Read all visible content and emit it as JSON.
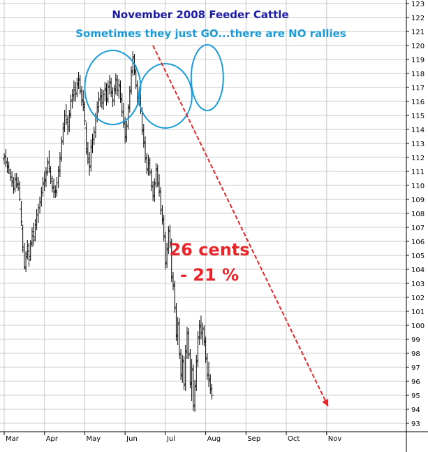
{
  "chart_data": {
    "type": "ohlc",
    "title": "November 2008 Feeder Cattle",
    "subtitle": "Sometimes they just GO...there are NO rallies",
    "annotation_main": "26 cents",
    "annotation_sub": "- 21 %",
    "ylim": [
      93,
      123
    ],
    "yticks": [
      93,
      94,
      95,
      96,
      97,
      98,
      99,
      100,
      101,
      102,
      103,
      104,
      105,
      106,
      107,
      108,
      109,
      110,
      111,
      112,
      113,
      114,
      115,
      116,
      117,
      118,
      119,
      120,
      121,
      122,
      123
    ],
    "xlabels": [
      "Mar",
      "Apr",
      "May",
      "Jun",
      "Jul",
      "Aug",
      "Sep",
      "Oct",
      "Nov"
    ],
    "y_axis_side": "right",
    "grid": true,
    "colors": {
      "title": "#1a1aa6",
      "subtitle": "#1b9bd7",
      "circles": "#1b9bd7",
      "arrow": "#e8262a",
      "annotation": "#e8262a",
      "bars": "#000000",
      "grid": "#c8c8c8"
    },
    "trend_arrow": {
      "from": {
        "x_index": 114,
        "y": 120.0
      },
      "to": {
        "x_index": 182,
        "y": 94.2
      }
    },
    "highlight_circles": [
      {
        "center_x_index": 70,
        "center_y": 117.0
      },
      {
        "center_x_index": 104,
        "center_y": 116.4
      },
      {
        "center_x_index": 131,
        "center_y": 117.7
      }
    ],
    "x_label_index": [
      0,
      26,
      52,
      78,
      104,
      130,
      156,
      182,
      208
    ],
    "series": [
      {
        "values": [
          [
            111.9,
            112.3,
            111.5,
            112.0
          ],
          [
            112.1,
            112.6,
            111.3,
            111.6
          ],
          [
            111.7,
            112.0,
            110.9,
            111.3
          ],
          [
            111.4,
            111.7,
            110.8,
            111.1
          ],
          [
            110.9,
            111.2,
            110.3,
            110.6
          ],
          [
            110.6,
            111.0,
            109.9,
            110.3
          ],
          [
            110.2,
            110.6,
            109.4,
            109.8
          ],
          [
            109.7,
            110.9,
            109.5,
            110.5
          ],
          [
            110.4,
            110.9,
            109.8,
            110.0
          ],
          [
            110.1,
            110.6,
            109.6,
            110.1
          ],
          [
            109.8,
            110.3,
            108.9,
            109.0
          ],
          [
            108.3,
            108.9,
            107.1,
            107.4
          ],
          [
            106.9,
            107.2,
            105.2,
            105.6
          ],
          [
            105.4,
            105.9,
            104.0,
            104.2
          ],
          [
            104.1,
            105.3,
            103.8,
            104.9
          ],
          [
            105.1,
            106.1,
            104.7,
            105.7
          ],
          [
            105.3,
            105.9,
            104.2,
            104.7
          ],
          [
            104.9,
            106.1,
            104.6,
            105.8
          ],
          [
            105.9,
            107.0,
            105.6,
            106.7
          ],
          [
            106.4,
            107.3,
            105.7,
            106.1
          ],
          [
            106.3,
            107.6,
            106.0,
            107.2
          ],
          [
            107.2,
            108.3,
            106.8,
            107.9
          ],
          [
            107.9,
            108.7,
            107.3,
            108.4
          ],
          [
            108.4,
            109.2,
            108.0,
            108.8
          ],
          [
            108.8,
            109.9,
            108.5,
            109.5
          ],
          [
            109.5,
            110.6,
            109.2,
            110.2
          ],
          [
            110.1,
            111.0,
            109.6,
            110.4
          ],
          [
            110.3,
            111.3,
            109.9,
            111.0
          ],
          [
            110.9,
            112.0,
            110.7,
            111.7
          ],
          [
            111.6,
            112.5,
            110.9,
            111.2
          ],
          [
            111.0,
            111.4,
            110.1,
            110.5
          ],
          [
            110.3,
            110.7,
            109.5,
            109.9
          ],
          [
            109.8,
            110.5,
            109.1,
            109.6
          ],
          [
            109.5,
            110.0,
            109.1,
            109.5
          ],
          [
            109.6,
            110.6,
            109.2,
            110.2
          ],
          [
            110.2,
            111.4,
            109.8,
            111.0
          ],
          [
            111.1,
            112.4,
            110.6,
            111.9
          ],
          [
            112.0,
            113.5,
            111.7,
            113.1
          ],
          [
            113.2,
            114.5,
            112.9,
            114.1
          ],
          [
            114.1,
            115.4,
            113.8,
            115.0
          ],
          [
            115.0,
            115.8,
            114.3,
            114.7
          ],
          [
            114.5,
            115.0,
            113.6,
            114.0
          ],
          [
            114.2,
            115.4,
            113.8,
            115.0
          ],
          [
            115.1,
            116.5,
            114.8,
            116.1
          ],
          [
            116.0,
            116.9,
            115.5,
            116.5
          ],
          [
            116.4,
            117.5,
            116.0,
            117.0
          ],
          [
            116.8,
            117.4,
            116.0,
            116.5
          ],
          [
            116.6,
            117.7,
            116.3,
            117.3
          ],
          [
            117.2,
            118.1,
            116.9,
            117.6
          ],
          [
            117.5,
            117.9,
            116.5,
            116.8
          ],
          [
            116.7,
            117.1,
            115.7,
            116.1
          ],
          [
            116.0,
            116.8,
            115.3,
            115.8
          ],
          [
            115.6,
            116.0,
            114.3,
            114.6
          ],
          [
            114.1,
            114.5,
            112.2,
            112.6
          ],
          [
            112.4,
            113.1,
            111.5,
            111.9
          ],
          [
            111.7,
            112.4,
            110.7,
            111.3
          ],
          [
            111.4,
            113.3,
            111.0,
            112.8
          ],
          [
            112.7,
            113.7,
            112.3,
            113.3
          ],
          [
            113.3,
            114.2,
            112.9,
            113.8
          ],
          [
            113.8,
            115.2,
            113.4,
            114.9
          ],
          [
            114.9,
            116.0,
            114.5,
            115.6
          ],
          [
            115.6,
            116.7,
            115.2,
            116.2
          ],
          [
            116.1,
            117.0,
            115.6,
            116.4
          ],
          [
            116.3,
            116.9,
            115.5,
            115.9
          ],
          [
            115.9,
            116.8,
            115.4,
            116.5
          ],
          [
            116.5,
            117.4,
            116.0,
            116.9
          ],
          [
            116.8,
            117.3,
            115.7,
            116.1
          ],
          [
            116.2,
            117.5,
            115.9,
            117.1
          ],
          [
            117.0,
            117.9,
            116.5,
            117.4
          ],
          [
            117.3,
            117.7,
            116.3,
            116.7
          ],
          [
            116.6,
            117.0,
            115.6,
            116.0
          ],
          [
            116.1,
            117.2,
            115.7,
            116.8
          ],
          [
            116.9,
            118.0,
            116.5,
            117.6
          ],
          [
            117.5,
            117.9,
            116.4,
            116.8
          ],
          [
            116.8,
            117.6,
            116.2,
            117.2
          ],
          [
            117.1,
            117.5,
            115.9,
            116.2
          ],
          [
            116.1,
            116.6,
            114.9,
            115.3
          ],
          [
            115.2,
            115.9,
            114.1,
            114.5
          ],
          [
            114.4,
            114.9,
            113.0,
            113.4
          ],
          [
            113.5,
            114.6,
            113.1,
            114.2
          ],
          [
            114.3,
            115.8,
            114.0,
            115.5
          ],
          [
            115.6,
            117.1,
            115.2,
            116.7
          ],
          [
            116.8,
            118.5,
            116.5,
            118.1
          ],
          [
            118.2,
            119.6,
            117.8,
            119.2
          ],
          [
            119.1,
            119.4,
            117.9,
            118.2
          ],
          [
            118.1,
            118.6,
            116.9,
            117.2
          ],
          [
            117.1,
            117.5,
            115.9,
            116.3
          ],
          [
            116.2,
            116.9,
            115.7,
            116.5
          ],
          [
            116.4,
            116.8,
            115.1,
            115.4
          ],
          [
            115.3,
            115.6,
            113.6,
            114.0
          ],
          [
            113.9,
            114.4,
            112.7,
            113.1
          ],
          [
            113.0,
            113.5,
            111.6,
            112.0
          ],
          [
            111.9,
            112.3,
            110.8,
            111.2
          ],
          [
            111.1,
            112.2,
            110.7,
            111.8
          ],
          [
            111.6,
            112.0,
            110.7,
            111.0
          ],
          [
            110.9,
            111.2,
            109.6,
            110.0
          ],
          [
            109.9,
            110.3,
            108.9,
            109.3
          ],
          [
            109.2,
            110.5,
            108.8,
            110.2
          ],
          [
            110.1,
            111.6,
            109.8,
            111.2
          ],
          [
            111.1,
            111.5,
            109.9,
            110.2
          ],
          [
            110.1,
            110.8,
            109.2,
            109.6
          ],
          [
            109.5,
            109.9,
            107.9,
            108.3
          ],
          [
            108.2,
            108.6,
            107.2,
            107.6
          ],
          [
            107.5,
            107.9,
            106.0,
            106.4
          ],
          [
            106.3,
            106.7,
            104.0,
            104.5
          ],
          [
            104.4,
            105.9,
            104.1,
            105.5
          ],
          [
            105.4,
            107.1,
            105.1,
            106.8
          ],
          [
            106.7,
            107.2,
            105.5,
            105.9
          ],
          [
            105.8,
            106.2,
            103.1,
            103.5
          ],
          [
            103.4,
            103.8,
            102.5,
            102.9
          ],
          [
            102.8,
            103.2,
            100.9,
            101.3
          ],
          [
            101.2,
            101.6,
            98.9,
            99.3
          ],
          [
            99.2,
            100.6,
            98.6,
            100.2
          ],
          [
            100.1,
            100.5,
            97.6,
            98.0
          ],
          [
            97.9,
            98.3,
            96.1,
            96.5
          ],
          [
            96.4,
            97.9,
            95.9,
            97.5
          ],
          [
            97.4,
            97.8,
            95.4,
            95.8
          ],
          [
            95.7,
            98.6,
            95.3,
            98.2
          ],
          [
            98.1,
            99.9,
            97.6,
            99.5
          ],
          [
            99.4,
            99.8,
            97.6,
            98.0
          ],
          [
            97.9,
            98.3,
            95.5,
            95.9
          ],
          [
            95.8,
            97.6,
            94.6,
            96.9
          ],
          [
            96.8,
            97.2,
            93.9,
            94.3
          ],
          [
            94.2,
            96.1,
            93.8,
            95.7
          ],
          [
            95.6,
            97.9,
            95.3,
            97.5
          ],
          [
            97.4,
            99.6,
            97.0,
            99.2
          ],
          [
            99.1,
            100.4,
            98.6,
            100.0
          ],
          [
            99.9,
            100.7,
            99.0,
            99.5
          ],
          [
            99.4,
            100.2,
            98.6,
            99.8
          ],
          [
            99.7,
            100.0,
            98.5,
            98.9
          ],
          [
            98.8,
            99.2,
            97.3,
            97.7
          ],
          [
            97.6,
            98.0,
            96.1,
            96.5
          ],
          [
            96.4,
            97.4,
            95.6,
            96.2
          ],
          [
            96.1,
            96.5,
            95.1,
            95.5
          ],
          [
            95.4,
            95.8,
            94.7,
            95.0
          ]
        ]
      }
    ]
  }
}
